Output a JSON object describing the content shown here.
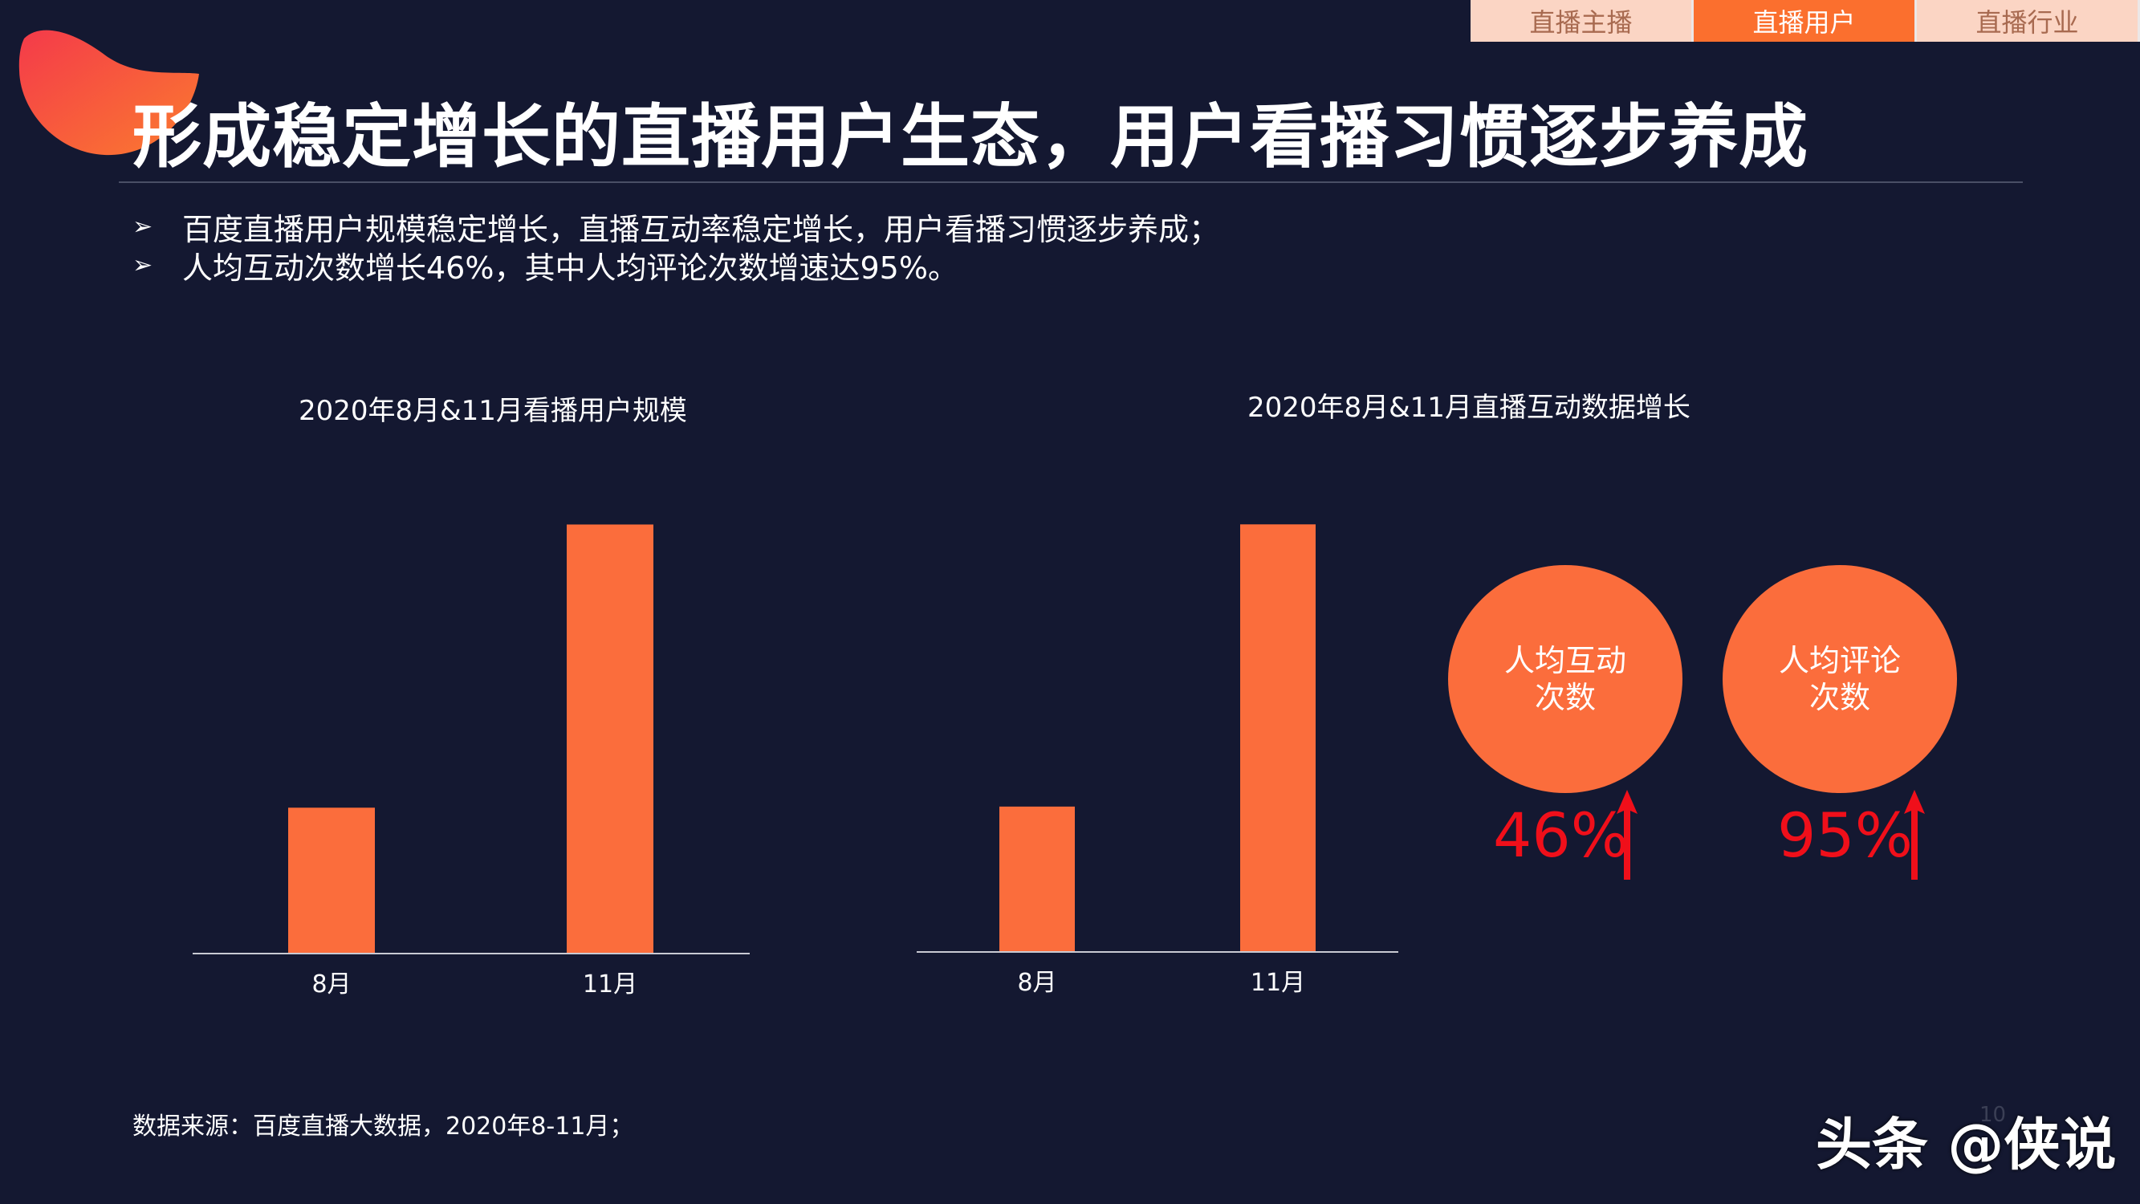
{
  "nav": {
    "tabs": [
      {
        "label": "直播主播",
        "active": false
      },
      {
        "label": "直播用户",
        "active": true
      },
      {
        "label": "直播行业",
        "active": false
      }
    ]
  },
  "page_title": "形成稳定增长的直播用户生态，用户看播习惯逐步养成",
  "bullets": [
    "百度直播用户规模稳定增长，直播互动率稳定增长，用户看播习惯逐步养成；",
    "人均互动次数增长46%，其中人均评论次数增速达95%。"
  ],
  "chart_data": [
    {
      "type": "bar",
      "title": "2020年8月&11月看播用户规模",
      "categories": [
        "8月",
        "11月"
      ],
      "values": [
        0.34,
        1.0
      ],
      "ylim": [
        0,
        1.1
      ],
      "grid": false,
      "color": "#fb6d3c"
    },
    {
      "type": "bar",
      "title": "2020年8月&11月直播互动数据增长",
      "categories": [
        "8月",
        "11月"
      ],
      "values": [
        0.34,
        1.0
      ],
      "ylim": [
        0,
        1.1
      ],
      "grid": false,
      "color": "#fb6d3c"
    }
  ],
  "metrics": [
    {
      "label_line1": "人均互动",
      "label_line2": "次数",
      "value": "46%"
    },
    {
      "label_line1": "人均评论",
      "label_line2": "次数",
      "value": "95%"
    }
  ],
  "source": "数据来源：百度直播大数据，2020年8-11月；",
  "page_number": "10",
  "watermark": "头条 @侠说",
  "colors": {
    "background": "#141831",
    "bar": "#fb6d3c",
    "accent_tab": "#fb6f2e",
    "metric_value": "#f00f1a"
  }
}
